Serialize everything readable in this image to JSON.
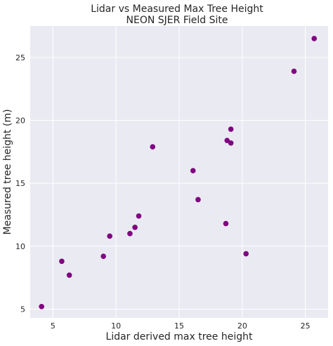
{
  "chart_data": {
    "type": "scatter",
    "title": "Lidar vs Measured Max Tree Height",
    "subtitle": "NEON SJER Field Site",
    "xlabel": "Lidar derived max tree height",
    "ylabel": "Measured tree height (m)",
    "xlim": [
      3.2,
      26.8
    ],
    "ylim": [
      4.3,
      27.5
    ],
    "xticks": [
      5,
      10,
      15,
      20,
      25
    ],
    "yticks": [
      5,
      10,
      15,
      20,
      25
    ],
    "grid": true,
    "legend": "none",
    "series": [
      {
        "marker_color": "#800080",
        "points": [
          {
            "x": 4.1,
            "y": 5.2
          },
          {
            "x": 5.7,
            "y": 8.8
          },
          {
            "x": 6.3,
            "y": 7.7
          },
          {
            "x": 9.0,
            "y": 9.2
          },
          {
            "x": 9.5,
            "y": 10.8
          },
          {
            "x": 11.1,
            "y": 11.0
          },
          {
            "x": 11.5,
            "y": 11.5
          },
          {
            "x": 11.8,
            "y": 12.4
          },
          {
            "x": 12.9,
            "y": 17.9
          },
          {
            "x": 16.1,
            "y": 16.0
          },
          {
            "x": 16.5,
            "y": 13.7
          },
          {
            "x": 18.7,
            "y": 11.8
          },
          {
            "x": 18.8,
            "y": 18.4
          },
          {
            "x": 19.1,
            "y": 19.3
          },
          {
            "x": 19.1,
            "y": 18.2
          },
          {
            "x": 20.3,
            "y": 9.4
          },
          {
            "x": 24.1,
            "y": 23.9
          },
          {
            "x": 25.7,
            "y": 26.5
          }
        ]
      }
    ]
  },
  "colors": {
    "plot_background": "#EAEAF2",
    "grid": "#FFFFFF",
    "marker": "#800080",
    "text": "#262626"
  }
}
